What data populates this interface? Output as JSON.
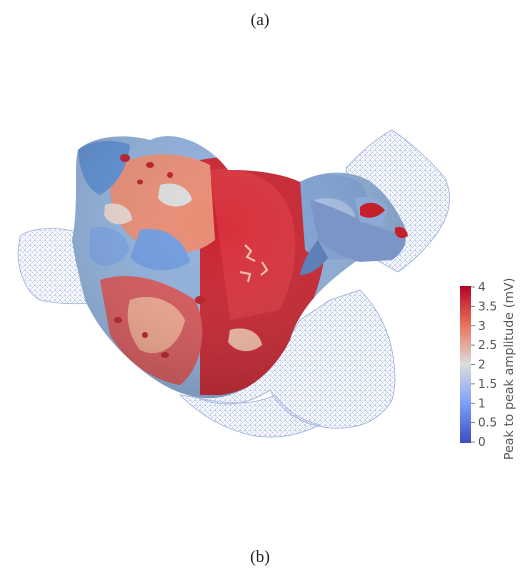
{
  "captions": {
    "top": "(a)",
    "bottom": "(b)"
  },
  "colorbar": {
    "title": "Peak to peak amplitude (mV)",
    "ticks": [
      "4",
      "3.5",
      "3",
      "2.5",
      "2",
      "1.5",
      "1",
      "0.5",
      "0"
    ],
    "range": [
      0,
      4
    ],
    "colors": {
      "high": "#b40426",
      "mid": "#dddddd",
      "low": "#3b4cc0"
    }
  }
}
